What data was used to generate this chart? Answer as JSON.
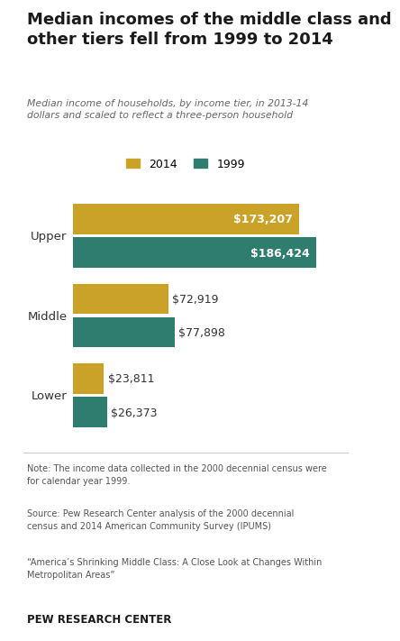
{
  "title": "Median incomes of the middle class and\nother tiers fell from 1999 to 2014",
  "subtitle": "Median income of households, by income tier, in 2013-14\ndollars and scaled to reflect a three-person household",
  "categories": [
    "Upper",
    "Middle",
    "Lower"
  ],
  "values_2014": [
    173207,
    72919,
    23811
  ],
  "values_1999": [
    186424,
    77898,
    26373
  ],
  "labels_2014": [
    "$173,207",
    "$72,919",
    "$23,811"
  ],
  "labels_1999": [
    "$186,424",
    "$77,898",
    "$26,373"
  ],
  "color_2014": "#C9A227",
  "color_1999": "#2E7D6E",
  "max_value": 200000,
  "note_text": "Note: The income data collected in the 2000 decennial census were\nfor calendar year 1999.",
  "source_text": "Source: Pew Research Center analysis of the 2000 decennial\ncensus and 2014 American Community Survey (IPUMS)",
  "quote_text": "“America’s Shrinking Middle Class: A Close Look at Changes Within\nMetropolitan Areas”",
  "footer_text": "PEW RESEARCH CENTER",
  "bg_color": "#ffffff",
  "bar_height": 0.38
}
